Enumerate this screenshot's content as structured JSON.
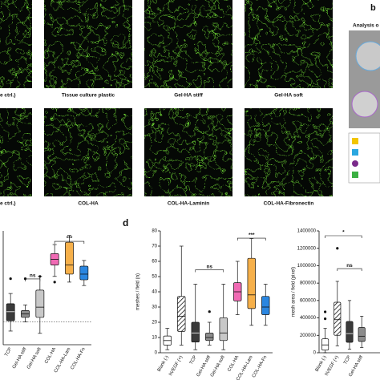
{
  "panel_labels": [
    "b",
    "d"
  ],
  "analysis_title": "Analysis o",
  "top_row_labels": [
    "e ctrl.)",
    "Tissue culture plastic",
    "Gel-HA stiff",
    "Gel-HA soft"
  ],
  "bottom_row_labels": [
    "e ctrl.)",
    "COL-HA",
    "COL-HA-Laminin",
    "COL-HA-Fibronectin"
  ],
  "legend_colors": [
    "#f2c500",
    "#2aa7e0",
    "#7a2a8a",
    "#3cb043"
  ],
  "charts": [
    {
      "type": "box",
      "categories": [
        "TCP",
        "Gel-HA stiff",
        "Gel-HA soft",
        "COL-HA",
        "COL-HA-Lam",
        "COL-HA-Fn"
      ],
      "ylim": [
        0,
        100
      ],
      "boxes": [
        {
          "values": [
            12,
            21,
            29,
            36,
            45
          ],
          "color": "#3a3a3a",
          "outliers": [
            58
          ]
        },
        {
          "values": [
            20,
            24,
            27,
            30,
            35
          ],
          "color": "#8c8c8c",
          "outliers": [
            58
          ]
        },
        {
          "values": [
            10,
            24,
            33,
            48,
            60
          ],
          "color": "#c8c8c8",
          "outliers": [
            60
          ]
        },
        {
          "values": [
            60,
            70,
            75,
            80,
            88
          ],
          "color": "#f06ab4",
          "outliers": [
            55
          ]
        },
        {
          "values": [
            55,
            62,
            70,
            90,
            96
          ],
          "color": "#f6b04a",
          "outliers": []
        },
        {
          "values": [
            52,
            57,
            62,
            69,
            74
          ],
          "color": "#2a86e0",
          "outliers": []
        }
      ],
      "annotations": [
        "***",
        "ns"
      ]
    },
    {
      "type": "box",
      "ylabel": "meshes / field (n)",
      "categories": [
        "Blank (-)",
        "hVEGF (+)",
        "TCP",
        "Gel-HA stiff",
        "Gel-HA soft",
        "COL-HA",
        "COL-HA-Lam",
        "COL-HA-Fn"
      ],
      "ylim": [
        0,
        80
      ],
      "yticks": [
        0,
        10,
        20,
        30,
        40,
        50,
        60,
        70,
        80
      ],
      "boxes": [
        {
          "values": [
            2,
            5,
            8,
            11,
            16
          ],
          "color": "#ffffff",
          "outliers": []
        },
        {
          "values": [
            5,
            14,
            24,
            37,
            70
          ],
          "color": "#ffffff",
          "hatch": true,
          "outliers": []
        },
        {
          "values": [
            2,
            7,
            13,
            20,
            45
          ],
          "color": "#3a3a3a",
          "outliers": []
        },
        {
          "values": [
            5,
            8,
            10,
            13,
            20
          ],
          "color": "#8c8c8c",
          "outliers": [
            27
          ]
        },
        {
          "values": [
            2,
            8,
            13,
            23,
            45
          ],
          "color": "#c8c8c8",
          "outliers": []
        },
        {
          "values": [
            25,
            34,
            40,
            46,
            60
          ],
          "color": "#f06ab4",
          "outliers": []
        },
        {
          "values": [
            18,
            29,
            38,
            62,
            75
          ],
          "color": "#f6b04a",
          "outliers": []
        },
        {
          "values": [
            18,
            25,
            30,
            37,
            45
          ],
          "color": "#2a86e0",
          "outliers": []
        }
      ],
      "annotations": [
        "***",
        "ns"
      ]
    },
    {
      "type": "box",
      "ylabel": "mesh area / field (pixel)",
      "categories": [
        "Blank (-)",
        "hVEGF (+)",
        "TCP",
        "Gel-HA stiff"
      ],
      "ylim": [
        0,
        1400000
      ],
      "yticks": [
        0,
        200000,
        400000,
        600000,
        800000,
        1000000,
        1200000,
        1400000
      ],
      "boxes": [
        {
          "values": [
            0,
            30000,
            90000,
            160000,
            280000
          ],
          "color": "#ffffff",
          "outliers": [
            470000,
            390000
          ]
        },
        {
          "values": [
            80000,
            200000,
            380000,
            580000,
            820000
          ],
          "color": "#ffffff",
          "hatch": true,
          "outliers": [
            1200000
          ]
        },
        {
          "values": [
            40000,
            120000,
            220000,
            360000,
            600000
          ],
          "color": "#3a3a3a",
          "outliers": []
        },
        {
          "values": [
            60000,
            130000,
            190000,
            290000,
            420000
          ],
          "color": "#8c8c8c",
          "outliers": []
        }
      ],
      "annotations": [
        "ns",
        "*"
      ]
    }
  ]
}
